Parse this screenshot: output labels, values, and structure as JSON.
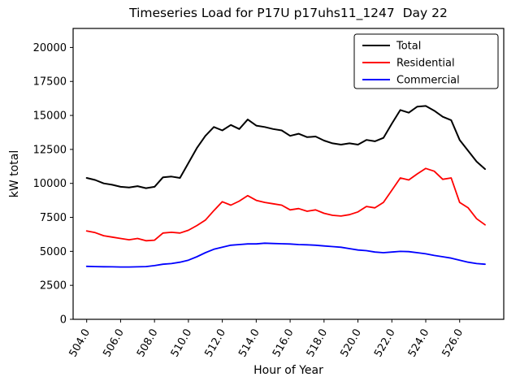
{
  "figure": {
    "background": "#ffffff"
  },
  "chart_data": {
    "type": "line",
    "title": "Timeseries Load for P17U p17uhs11_1247  Day 22",
    "xlabel": "Hour of Year",
    "ylabel": "kW total",
    "xlim": [
      503.2,
      528.6
    ],
    "ylim": [
      0,
      21400
    ],
    "grid": false,
    "legend_position": "upper right",
    "yticks": [
      0,
      2500,
      5000,
      7500,
      10000,
      12500,
      15000,
      17500,
      20000
    ],
    "xticks": [
      504,
      506,
      508,
      510,
      512,
      514,
      516,
      518,
      520,
      522,
      524,
      526
    ],
    "xtick_labels": [
      "504.0",
      "506.0",
      "508.0",
      "510.0",
      "512.0",
      "514.0",
      "516.0",
      "518.0",
      "520.0",
      "522.0",
      "524.0",
      "526.0"
    ],
    "x": [
      504.0,
      504.5,
      505.0,
      505.5,
      506.0,
      506.5,
      507.0,
      507.5,
      508.0,
      508.5,
      509.0,
      509.5,
      510.0,
      510.5,
      511.0,
      511.5,
      512.0,
      512.5,
      513.0,
      513.5,
      514.0,
      514.5,
      515.0,
      515.5,
      516.0,
      516.5,
      517.0,
      517.5,
      518.0,
      518.5,
      519.0,
      519.5,
      520.0,
      520.5,
      521.0,
      521.5,
      522.0,
      522.5,
      523.0,
      523.5,
      524.0,
      524.5,
      525.0,
      525.5,
      526.0,
      526.5,
      527.0,
      527.5
    ],
    "series": [
      {
        "name": "Total",
        "color": "#000000",
        "values": [
          10400,
          10250,
          10000,
          9900,
          9750,
          9700,
          9800,
          9650,
          9750,
          10450,
          10500,
          10400,
          11500,
          12600,
          13500,
          14150,
          13900,
          14300,
          14000,
          14700,
          14250,
          14150,
          14000,
          13900,
          13500,
          13650,
          13400,
          13450,
          13150,
          12950,
          12850,
          12950,
          12850,
          13200,
          13100,
          13350,
          14400,
          15400,
          15200,
          15650,
          15700,
          15350,
          14900,
          14650,
          13200,
          12400,
          11600,
          11050
        ]
      },
      {
        "name": "Residential",
        "color": "#ff0000",
        "values": [
          6500,
          6380,
          6150,
          6050,
          5950,
          5850,
          5950,
          5780,
          5820,
          6350,
          6400,
          6350,
          6550,
          6900,
          7300,
          8000,
          8650,
          8400,
          8700,
          9100,
          8750,
          8600,
          8500,
          8400,
          8050,
          8150,
          7950,
          8050,
          7800,
          7650,
          7600,
          7700,
          7900,
          8300,
          8200,
          8600,
          9500,
          10400,
          10250,
          10700,
          11100,
          10900,
          10300,
          10400,
          8600,
          8200,
          7400,
          6950
        ]
      },
      {
        "name": "Commercial",
        "color": "#0000ff",
        "values": [
          3900,
          3880,
          3870,
          3860,
          3850,
          3850,
          3860,
          3880,
          3950,
          4050,
          4100,
          4200,
          4350,
          4600,
          4900,
          5150,
          5300,
          5450,
          5500,
          5550,
          5550,
          5600,
          5580,
          5560,
          5540,
          5500,
          5480,
          5450,
          5400,
          5350,
          5300,
          5200,
          5100,
          5050,
          4950,
          4900,
          4950,
          5000,
          4980,
          4900,
          4820,
          4700,
          4600,
          4500,
          4350,
          4200,
          4100,
          4050
        ]
      }
    ]
  }
}
